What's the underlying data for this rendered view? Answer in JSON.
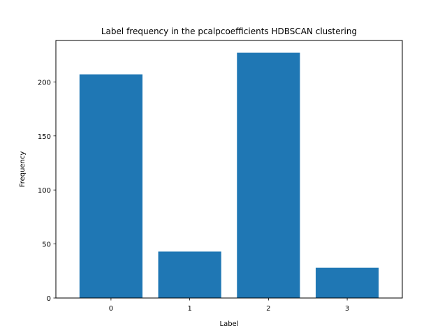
{
  "chart_data": {
    "type": "bar",
    "title": "Label frequency in the pcalpcoefficients HDBSCAN clustering",
    "xlabel": "Label",
    "ylabel": "Frequency",
    "categories": [
      "0",
      "1",
      "2",
      "3"
    ],
    "values": [
      207,
      43,
      227,
      28
    ],
    "ylim": [
      0,
      238.35
    ],
    "yticks": [
      0,
      50,
      100,
      150,
      200
    ],
    "grid": false,
    "bar_color": "#1f77b4"
  }
}
